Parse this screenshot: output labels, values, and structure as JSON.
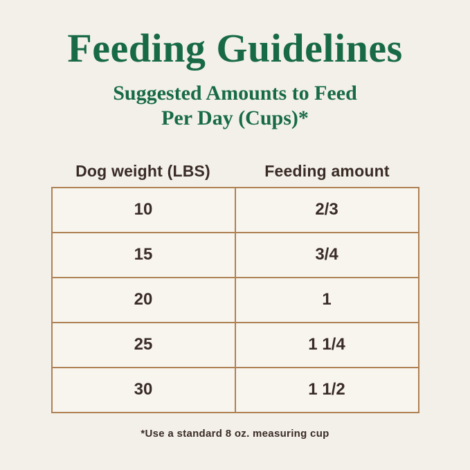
{
  "header": {
    "title": "Feeding Guidelines",
    "subtitle_line1": "Suggested Amounts to Feed",
    "subtitle_line2": "Per Day (Cups)*"
  },
  "table": {
    "columns": [
      "Dog weight (LBS)",
      "Feeding amount"
    ],
    "rows": [
      [
        "10",
        "2/3"
      ],
      [
        "15",
        "3/4"
      ],
      [
        "20",
        "1"
      ],
      [
        "25",
        "1 1/4"
      ],
      [
        "30",
        "1 1/2"
      ]
    ]
  },
  "footer": {
    "note": "*Use a standard 8 oz. measuring cup"
  },
  "colors": {
    "background": "#f2f0e8",
    "cell_background": "#f7f5ee",
    "heading_green": "#186a47",
    "table_border": "#ae8052",
    "text_dark": "#3a2b27"
  },
  "chart_data": {
    "type": "table",
    "title": "Feeding Guidelines",
    "subtitle": "Suggested Amounts to Feed Per Day (Cups)*",
    "columns": [
      "Dog weight (LBS)",
      "Feeding amount"
    ],
    "rows": [
      {
        "dog_weight_lbs": 10,
        "feeding_amount_cups": "2/3"
      },
      {
        "dog_weight_lbs": 15,
        "feeding_amount_cups": "3/4"
      },
      {
        "dog_weight_lbs": 20,
        "feeding_amount_cups": "1"
      },
      {
        "dog_weight_lbs": 25,
        "feeding_amount_cups": "1 1/4"
      },
      {
        "dog_weight_lbs": 30,
        "feeding_amount_cups": "1 1/2"
      }
    ],
    "footnote": "*Use a standard 8 oz. measuring cup",
    "layout": "two-column centered table, headers above grid, tan borders on cream background"
  }
}
